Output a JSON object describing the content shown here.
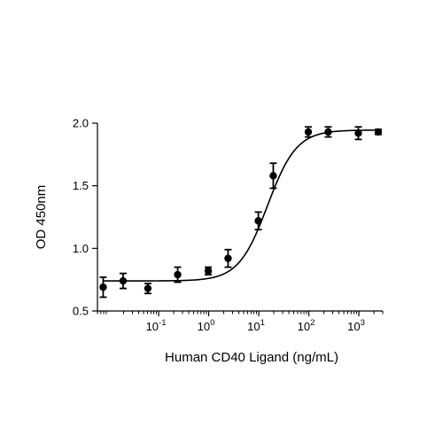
{
  "chart_data": {
    "type": "scatter",
    "title": "",
    "xlabel": "Human CD40 Ligand (ng/mL)",
    "ylabel": "OD 450nm",
    "x_scale": "log",
    "xlim": [
      0.006,
      3000
    ],
    "ylim": [
      0.5,
      2.0
    ],
    "yticks": [
      0.5,
      1.0,
      1.5,
      2.0
    ],
    "ytick_labels": [
      "0.5",
      "1.0",
      "1.5",
      "2.0"
    ],
    "xticks": [
      {
        "value": 0.1,
        "base": "10",
        "exp": "-1"
      },
      {
        "value": 1,
        "base": "10",
        "exp": "0"
      },
      {
        "value": 10,
        "base": "10",
        "exp": "1"
      },
      {
        "value": 100,
        "base": "10",
        "exp": "2"
      },
      {
        "value": 1000,
        "base": "10",
        "exp": "3"
      }
    ],
    "grid": false,
    "legend": "none",
    "points": [
      {
        "x": 0.0078,
        "y": 0.69,
        "err": 0.08
      },
      {
        "x": 0.0195,
        "y": 0.74,
        "err": 0.06
      },
      {
        "x": 0.061,
        "y": 0.68,
        "err": 0.04
      },
      {
        "x": 0.24,
        "y": 0.79,
        "err": 0.06
      },
      {
        "x": 0.98,
        "y": 0.82,
        "err": 0.03
      },
      {
        "x": 2.44,
        "y": 0.92,
        "err": 0.07
      },
      {
        "x": 9.8,
        "y": 1.22,
        "err": 0.07
      },
      {
        "x": 19.5,
        "y": 1.58,
        "err": 0.1
      },
      {
        "x": 97.7,
        "y": 1.93,
        "err": 0.04
      },
      {
        "x": 244,
        "y": 1.93,
        "err": 0.04
      },
      {
        "x": 977,
        "y": 1.92,
        "err": 0.05
      },
      {
        "x": 2441,
        "y": 1.93,
        "err": 0.02
      }
    ],
    "fit": {
      "model": "4PL",
      "bottom": 0.74,
      "top": 1.945,
      "ec50": 15,
      "hill": 1.5
    }
  }
}
